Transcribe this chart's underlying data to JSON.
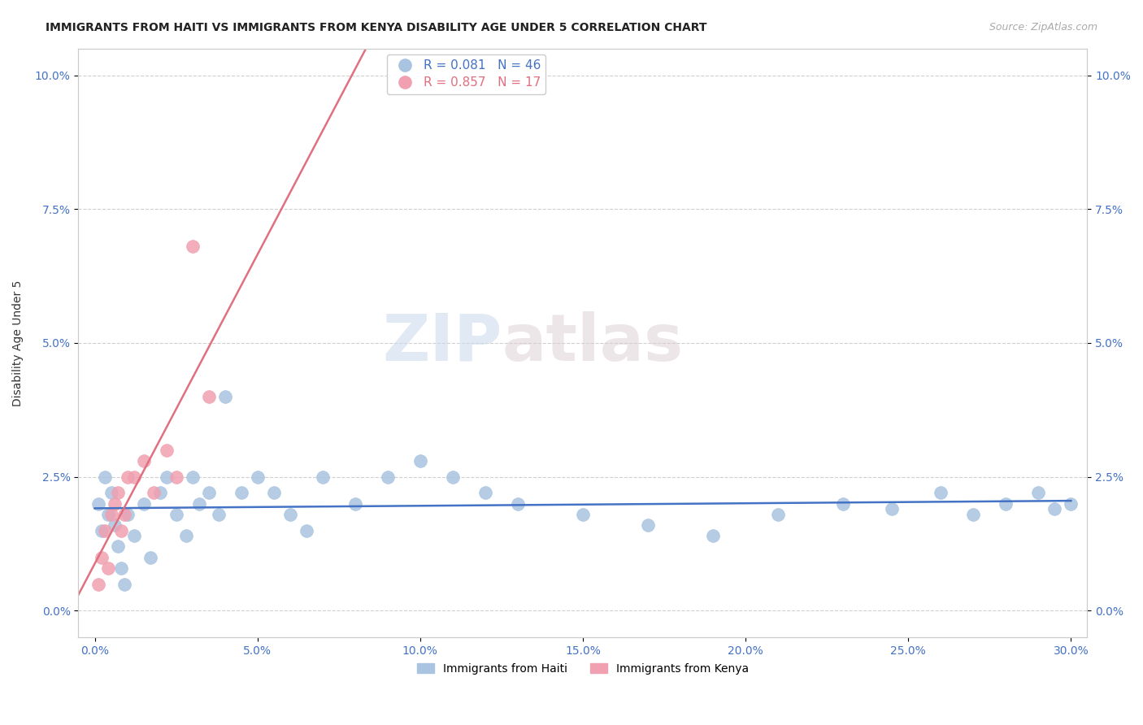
{
  "title": "IMMIGRANTS FROM HAITI VS IMMIGRANTS FROM KENYA DISABILITY AGE UNDER 5 CORRELATION CHART",
  "source": "Source: ZipAtlas.com",
  "ylabel": "Disability Age Under 5",
  "xlabel_vals": [
    0.0,
    0.05,
    0.1,
    0.15,
    0.2,
    0.25,
    0.3
  ],
  "ylabel_ticks": [
    "0.0%",
    "2.5%",
    "5.0%",
    "7.5%",
    "10.0%"
  ],
  "ylabel_vals": [
    0.0,
    0.025,
    0.05,
    0.075,
    0.1
  ],
  "xlim": [
    -0.005,
    0.305
  ],
  "ylim": [
    -0.005,
    0.105
  ],
  "haiti_R": 0.081,
  "haiti_N": 46,
  "kenya_R": 0.857,
  "kenya_N": 17,
  "haiti_color": "#a8c4e0",
  "kenya_color": "#f0a0b0",
  "haiti_line_color": "#4472c4",
  "kenya_line_color": "#e07080",
  "legend_label_haiti": "Immigrants from Haiti",
  "legend_label_kenya": "Immigrants from Kenya",
  "haiti_x": [
    0.001,
    0.002,
    0.003,
    0.004,
    0.005,
    0.006,
    0.007,
    0.008,
    0.009,
    0.01,
    0.012,
    0.015,
    0.017,
    0.02,
    0.022,
    0.025,
    0.028,
    0.03,
    0.032,
    0.035,
    0.038,
    0.04,
    0.045,
    0.05,
    0.055,
    0.06,
    0.065,
    0.07,
    0.08,
    0.09,
    0.1,
    0.11,
    0.12,
    0.13,
    0.15,
    0.17,
    0.19,
    0.21,
    0.23,
    0.245,
    0.26,
    0.27,
    0.28,
    0.29,
    0.295,
    0.3
  ],
  "haiti_y": [
    0.02,
    0.015,
    0.025,
    0.018,
    0.022,
    0.016,
    0.012,
    0.008,
    0.005,
    0.018,
    0.014,
    0.02,
    0.01,
    0.022,
    0.025,
    0.018,
    0.014,
    0.025,
    0.02,
    0.022,
    0.018,
    0.04,
    0.022,
    0.025,
    0.022,
    0.018,
    0.015,
    0.025,
    0.02,
    0.025,
    0.028,
    0.025,
    0.022,
    0.02,
    0.018,
    0.016,
    0.014,
    0.018,
    0.02,
    0.019,
    0.022,
    0.018,
    0.02,
    0.022,
    0.019,
    0.02
  ],
  "kenya_x": [
    0.001,
    0.002,
    0.003,
    0.004,
    0.005,
    0.006,
    0.007,
    0.008,
    0.009,
    0.01,
    0.012,
    0.015,
    0.018,
    0.022,
    0.025,
    0.03,
    0.035
  ],
  "kenya_y": [
    0.005,
    0.01,
    0.015,
    0.008,
    0.018,
    0.02,
    0.022,
    0.015,
    0.018,
    0.025,
    0.025,
    0.028,
    0.022,
    0.03,
    0.025,
    0.068,
    0.04
  ],
  "watermark_zip": "ZIP",
  "watermark_atlas": "atlas",
  "background_color": "#ffffff",
  "grid_color": "#d0d0d0",
  "tick_label_color": "#4472c4"
}
